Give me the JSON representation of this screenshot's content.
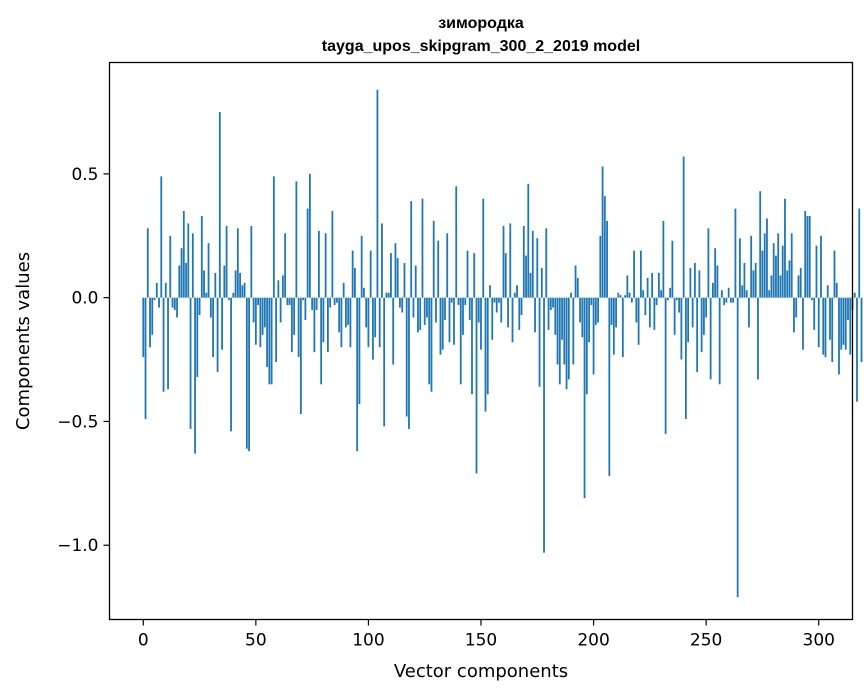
{
  "chart_data": {
    "type": "bar",
    "title": "зимородка",
    "subtitle": "tayga_upos_skipgram_300_2_2019 model",
    "xlabel": "Vector components",
    "ylabel": "Components values",
    "xlim": [
      -15,
      315
    ],
    "ylim": [
      -1.3,
      0.95
    ],
    "xticks": [
      0,
      50,
      100,
      150,
      200,
      250,
      300
    ],
    "xtick_labels": [
      "0",
      "50",
      "100",
      "150",
      "200",
      "250",
      "300"
    ],
    "yticks": [
      -1.0,
      -0.5,
      0.0,
      0.5
    ],
    "ytick_labels": [
      "−1.0",
      "−0.5",
      "0.0",
      "0.5"
    ],
    "grid": false,
    "bar_color": "#1f77b4",
    "x_start": 0,
    "values": [
      -0.24,
      -0.49,
      0.28,
      -0.2,
      -0.15,
      -0.01,
      0.06,
      -0.04,
      0.49,
      -0.38,
      0.06,
      -0.37,
      0.25,
      -0.04,
      -0.05,
      -0.08,
      0.13,
      0.2,
      0.35,
      0.14,
      0.3,
      -0.53,
      0.26,
      -0.63,
      -0.32,
      -0.07,
      0.33,
      0.11,
      0.02,
      0.22,
      -0.08,
      -0.24,
      0.1,
      -0.3,
      0.75,
      -0.21,
      0.13,
      0.29,
      -0.01,
      -0.54,
      0.02,
      0.11,
      0.28,
      0.1,
      0.05,
      0.06,
      -0.61,
      -0.62,
      0.29,
      -0.1,
      -0.19,
      -0.03,
      -0.2,
      -0.15,
      -0.12,
      -0.28,
      -0.35,
      -0.35,
      0.49,
      -0.26,
      0.07,
      -0.1,
      0.09,
      0.26,
      -0.03,
      -0.03,
      -0.22,
      -0.15,
      0.47,
      -0.24,
      -0.47,
      -0.01,
      -0.09,
      0.36,
      0.5,
      -0.05,
      -0.22,
      -0.05,
      0.27,
      -0.35,
      -0.18,
      0.26,
      -0.22,
      -0.04,
      0.35,
      -0.03,
      -0.02,
      -0.14,
      -0.2,
      0.06,
      -0.12,
      -0.11,
      -0.2,
      0.19,
      0.12,
      -0.62,
      -0.43,
      0.25,
      0.04,
      -0.12,
      -0.2,
      0.19,
      -0.25,
      -0.16,
      0.84,
      -0.2,
      0.3,
      -0.52,
      0.02,
      0.02,
      0.18,
      -0.27,
      0.22,
      0.16,
      -0.04,
      -0.06,
      0.14,
      -0.48,
      -0.53,
      0.39,
      -0.08,
      0.13,
      -0.14,
      -0.13,
      0.4,
      -0.11,
      -0.08,
      -0.35,
      -0.38,
      0.31,
      -0.1,
      0.23,
      -0.23,
      -0.21,
      -0.09,
      0.26,
      -0.18,
      -0.02,
      -0.19,
      0.45,
      -0.03,
      -0.35,
      -0.15,
      -0.03,
      0.19,
      -0.09,
      -0.39,
      0.18,
      -0.71,
      -0.1,
      -0.21,
      0.4,
      -0.46,
      -0.39,
      0.05,
      -0.17,
      -0.02,
      -0.06,
      -0.02,
      -0.1,
      0.29,
      0.18,
      -0.12,
      0.3,
      -0.18,
      0.02,
      0.05,
      -0.13,
      -0.07,
      0.29,
      0.17,
      0.46,
      0.1,
      0.27,
      -0.14,
      0.24,
      -0.36,
      0.12,
      -1.03,
      0.28,
      -0.13,
      -0.05,
      -0.04,
      -0.15,
      -0.27,
      -0.35,
      -0.17,
      -0.27,
      -0.37,
      -0.33,
      0.02,
      -0.27,
      0.13,
      0.08,
      -0.1,
      -0.16,
      -0.81,
      -0.39,
      -0.18,
      -0.03,
      -0.31,
      -0.11,
      -0.1,
      0.25,
      0.53,
      0.41,
      0.31,
      -0.72,
      -0.11,
      -0.23,
      -0.12,
      0.02,
      0.01,
      -0.24,
      0.01,
      0.09,
      0.02,
      -0.02,
      0.19,
      -0.1,
      -0.19,
      0.19,
      0.03,
      -0.07,
      0.08,
      -0.12,
      0.1,
      -0.13,
      -0.03,
      0.1,
      0.03,
      0.31,
      -0.55,
      -0.01,
      0.04,
      0.23,
      -0.15,
      -0.01,
      -0.06,
      -0.25,
      0.57,
      -0.49,
      -0.18,
      0.12,
      -0.12,
      0.14,
      -0.3,
      0.11,
      -0.22,
      -0.15,
      -0.08,
      0.28,
      -0.33,
      0.06,
      0.2,
      0.13,
      -0.35,
      0.03,
      -0.03,
      -0.02,
      0.04,
      -0.02,
      -0.02,
      0.36,
      -1.21,
      0.24,
      0.05,
      0.14,
      0.03,
      -0.12,
      0.25,
      0.11,
      0.14,
      -0.33,
      0.43,
      0.19,
      0.26,
      0.32,
      0.03,
      0.09,
      0.22,
      0.17,
      0.26,
      0.09,
      0.21,
      0.4,
      0.11,
      0.15,
      0.26,
      -0.14,
      -0.08,
      0.09,
      0.12,
      -0.21,
      0.35,
      0.33,
      0.33,
      -0.01,
      -0.13,
      0.21,
      -0.2,
      0.25,
      -0.23,
      -0.24,
      0.05,
      -0.17,
      -0.26,
      0.19,
      0.06,
      -0.31,
      -0.21,
      -0.19,
      -0.21,
      -0.09,
      -0.23,
      -0.05,
      0.02,
      -0.42,
      0.36,
      -0.26
    ]
  }
}
